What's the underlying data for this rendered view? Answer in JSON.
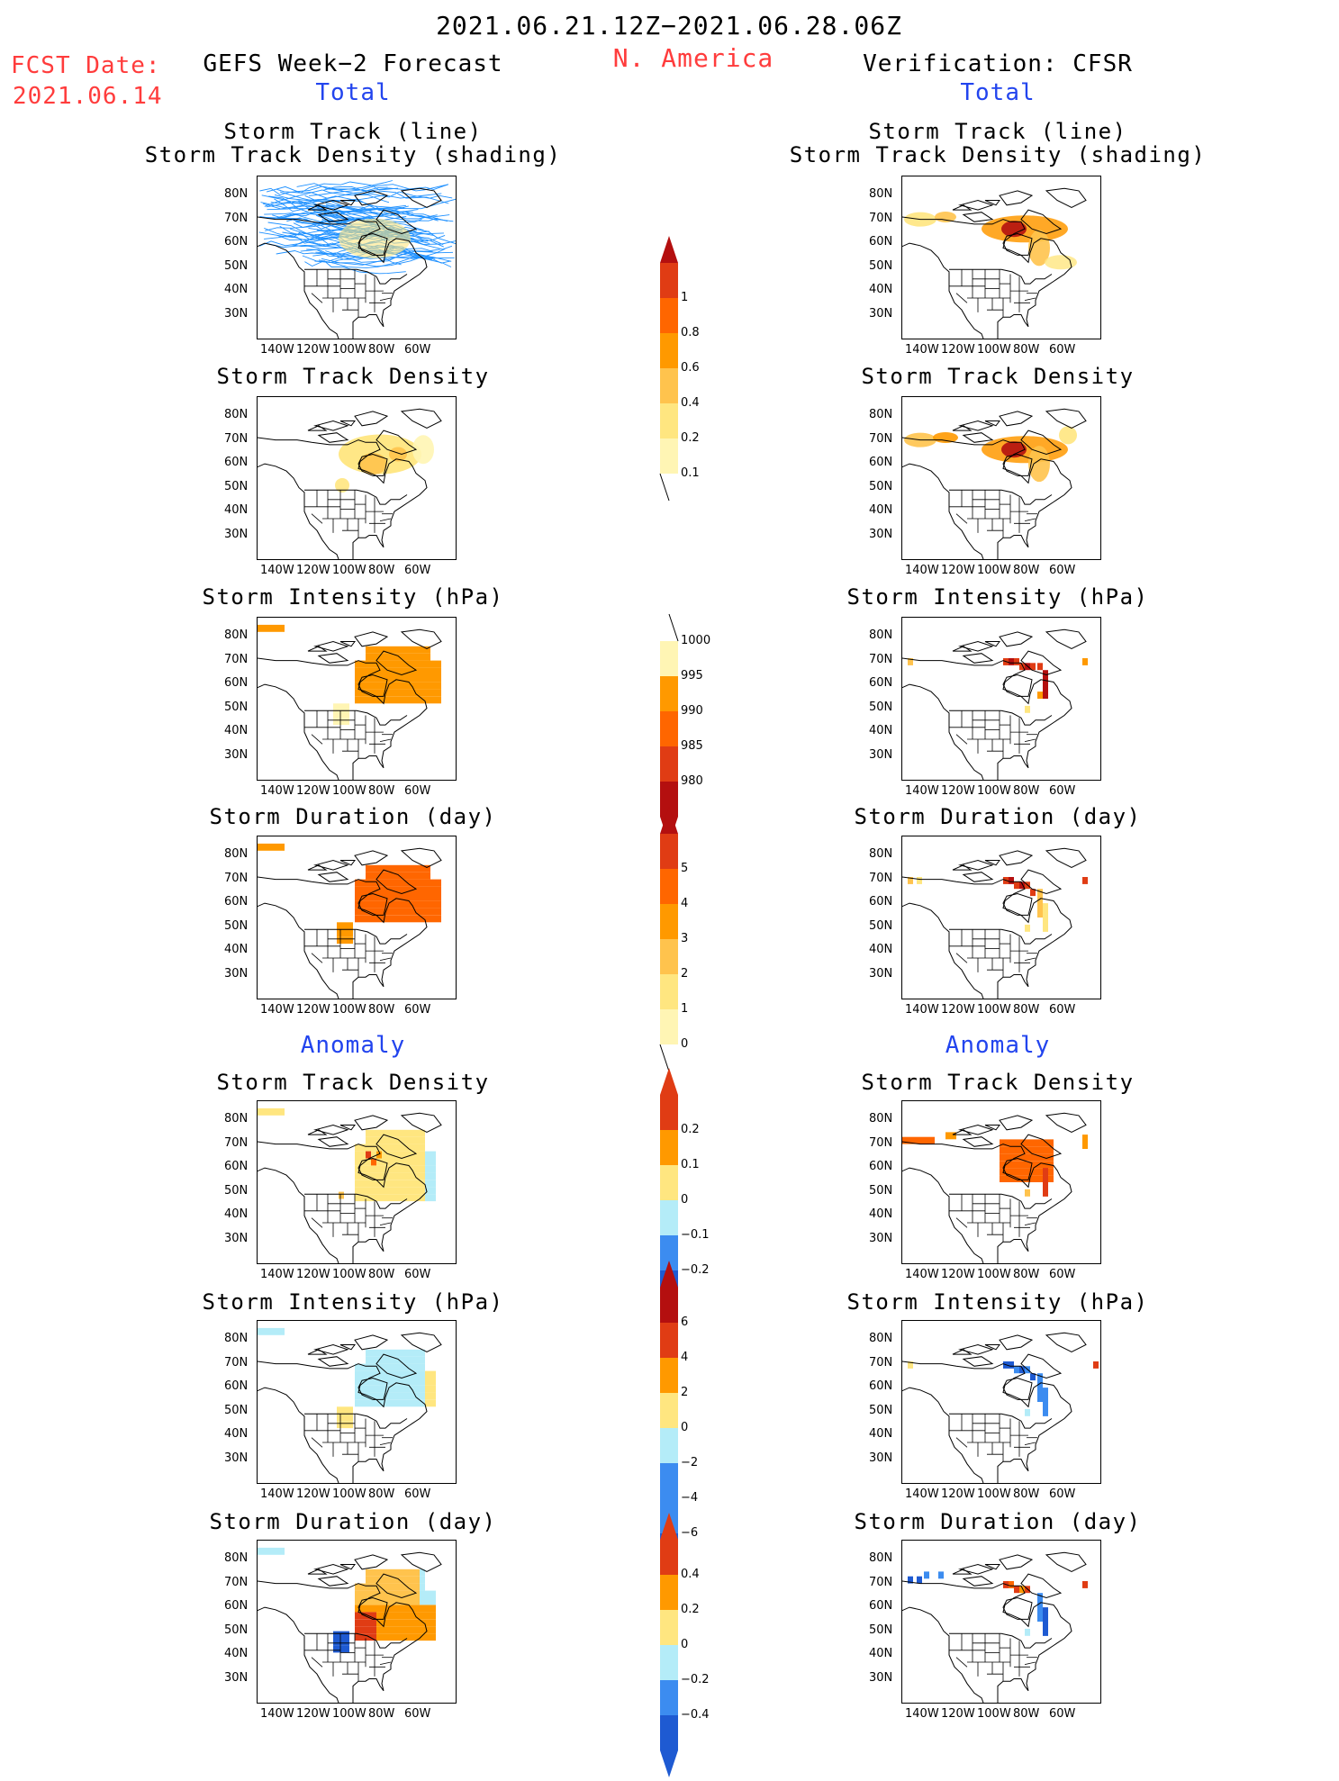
{
  "header": {
    "date_range": "2021.06.21.12Z−2021.06.28.06Z",
    "region": "N. America",
    "fcst_label": "FCST Date:",
    "fcst_date": "2021.06.14",
    "left_title": "GEFS Week−2 Forecast",
    "right_title": "Verification: CFSR",
    "total_label": "Total",
    "anomaly_label": "Anomaly"
  },
  "panel_titles": {
    "track_line": "Storm Track (line)",
    "track_shading": "Storm Track Density (shading)",
    "density": "Storm Track Density",
    "intensity": "Storm Intensity (hPa)",
    "duration": "Storm Duration (day)"
  },
  "axes": {
    "lat_ticks": [
      "80N",
      "70N",
      "60N",
      "50N",
      "40N",
      "30N"
    ],
    "lon_ticks": [
      "140W",
      "120W",
      "100W",
      "80W",
      "60W"
    ]
  },
  "colorbars": {
    "density_total": [
      "1",
      "0.8",
      "0.6",
      "0.4",
      "0.2",
      "0.1"
    ],
    "intensity_total": [
      "1000",
      "995",
      "990",
      "985",
      "980"
    ],
    "duration_total": [
      "5",
      "4",
      "3",
      "2",
      "1",
      "0"
    ],
    "density_anom": [
      "0.2",
      "0.1",
      "0",
      "−0.1",
      "−0.2"
    ],
    "intensity_anom": [
      "6",
      "4",
      "2",
      "0",
      "−2",
      "−4",
      "−6"
    ],
    "duration_anom": [
      "0.4",
      "0.2",
      "0",
      "−0.2",
      "−0.4"
    ]
  },
  "colors": {
    "title_red": "#ff3c3c",
    "title_blue": "#2244ee",
    "track_line": "#1e90ff",
    "lt_yellow": "#fff5b4",
    "yellow": "#ffe680",
    "orange_lt": "#ffc34d",
    "orange": "#ff9900",
    "orange_dk": "#ff6600",
    "red": "#e03c14",
    "dark_red": "#b40f0f",
    "lt_blue": "#b4ecf8",
    "blue": "#3c8cf0",
    "dk_blue": "#1e5ad2"
  }
}
